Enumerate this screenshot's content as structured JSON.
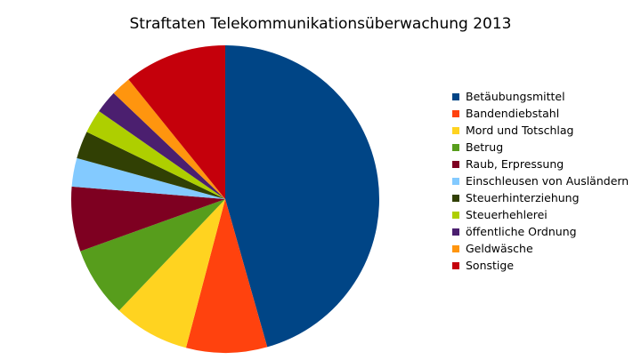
{
  "chart_data": {
    "type": "pie",
    "title": "Straftaten Telekommunikationsüberwachung 2013",
    "legend_position": "right",
    "start": "12 o'clock",
    "direction": "clockwise",
    "slices": [
      {
        "label": "Betäubungsmittel",
        "value": 45.6,
        "color": "#004586"
      },
      {
        "label": "Bandendiebstahl",
        "value": 8.5,
        "color": "#ff420e"
      },
      {
        "label": "Mord und Totschlag",
        "value": 8.0,
        "color": "#ffd320"
      },
      {
        "label": "Betrug",
        "value": 7.4,
        "color": "#579d1c"
      },
      {
        "label": "Raub, Erpressung",
        "value": 6.8,
        "color": "#7e0021"
      },
      {
        "label": "Einschleusen von Ausländern",
        "value": 3.0,
        "color": "#83caff"
      },
      {
        "label": "Steuerhinterziehung",
        "value": 2.9,
        "color": "#314004"
      },
      {
        "label": "Steuerhehlerei",
        "value": 2.5,
        "color": "#aecf00"
      },
      {
        "label": "öffentliche Ordnung",
        "value": 2.4,
        "color": "#4b1f6f"
      },
      {
        "label": "Geldwäsche",
        "value": 2.1,
        "color": "#ff950e"
      },
      {
        "label": "Sonstige",
        "value": 10.8,
        "color": "#c5000b"
      }
    ]
  }
}
